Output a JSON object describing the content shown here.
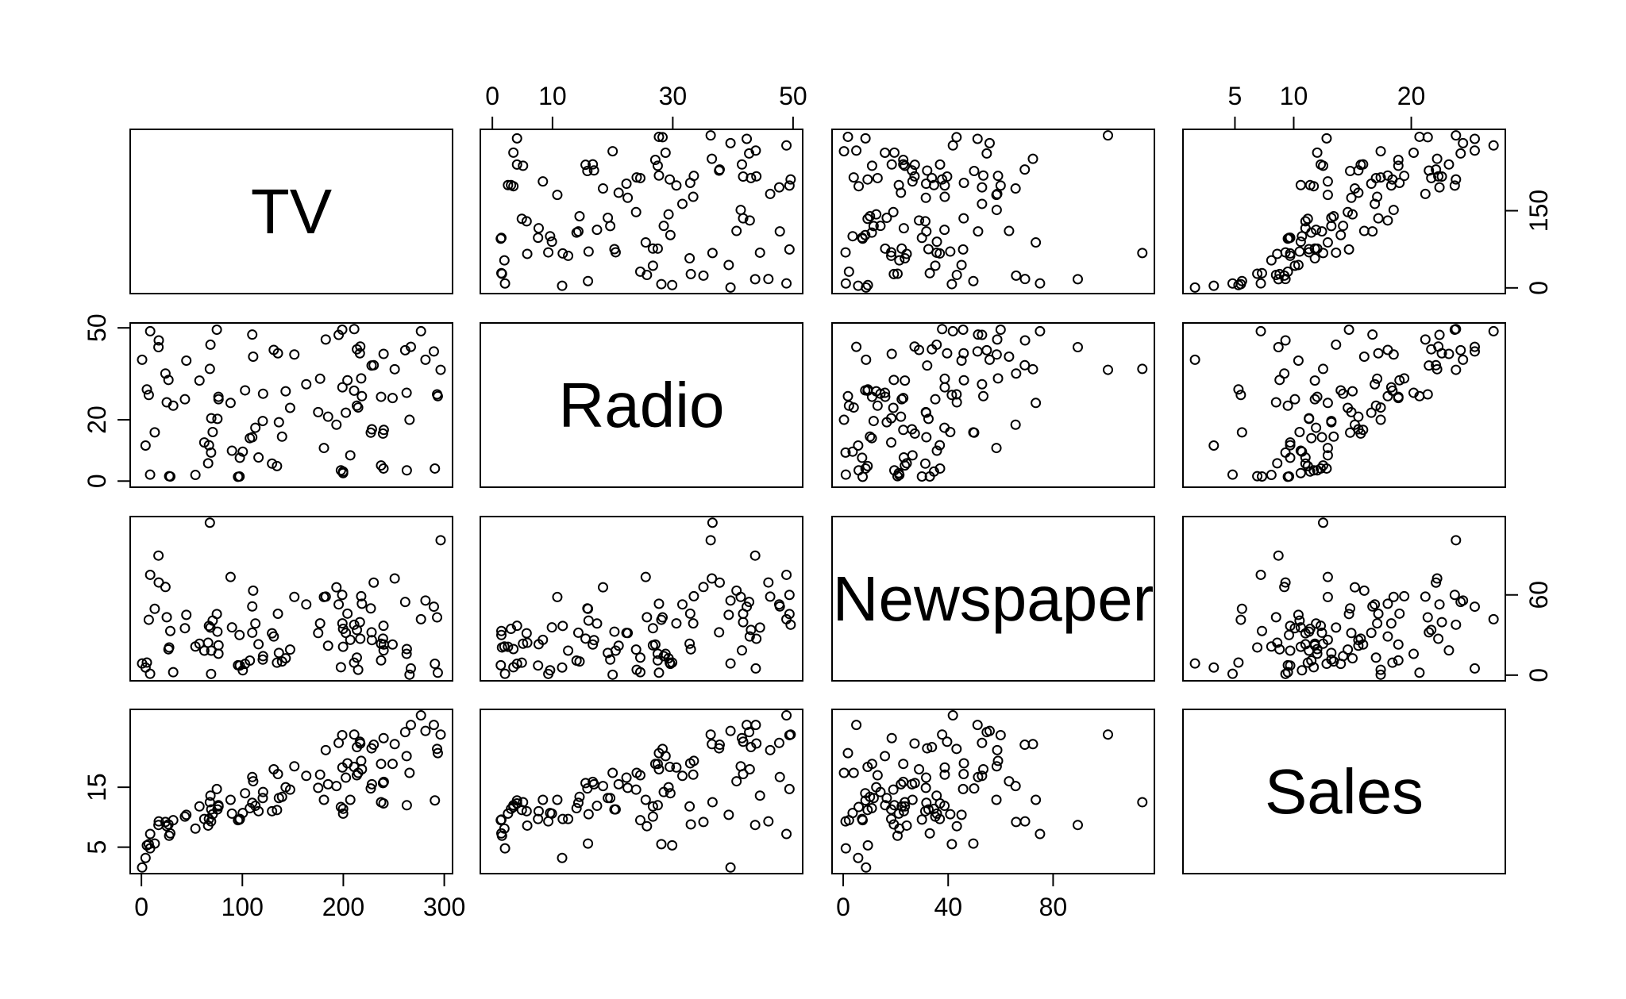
{
  "chart_data": {
    "type": "scatter_matrix",
    "variables": [
      "TV",
      "Radio",
      "Newspaper",
      "Sales"
    ],
    "lims": [
      [
        -11.1,
        308.2
      ],
      [
        -2,
        51.6
      ],
      [
        -4.25,
        118.6
      ],
      [
        0.58,
        28.0
      ]
    ],
    "axes": [
      {
        "side": "top",
        "var": 1,
        "ticks": [
          0,
          10,
          30,
          50
        ]
      },
      {
        "side": "top",
        "var": 3,
        "ticks": [
          5,
          10,
          20
        ]
      },
      {
        "side": "bottom",
        "var": 0,
        "ticks": [
          0,
          100,
          200,
          300
        ]
      },
      {
        "side": "bottom",
        "var": 2,
        "ticks": [
          0,
          40,
          80
        ]
      },
      {
        "side": "left",
        "var": 1,
        "ticks": [
          0,
          20,
          50
        ]
      },
      {
        "side": "left",
        "var": 3,
        "ticks": [
          5,
          15
        ]
      },
      {
        "side": "right",
        "var": 0,
        "ticks": [
          0,
          150
        ]
      },
      {
        "side": "right",
        "var": 2,
        "ticks": [
          0,
          60
        ]
      }
    ],
    "color": "#000000",
    "columns": [
      [
        230.1,
        44.5,
        17.2,
        151.5,
        180.8,
        8.7,
        57.5,
        120.2,
        8.6,
        199.8,
        66.1,
        214.7,
        23.8,
        97.5,
        204.1,
        195.4,
        67.8,
        281.4,
        69.2,
        147.3,
        218.4,
        237.4,
        13.2,
        228.3,
        62.3,
        262.9,
        142.9,
        240.1,
        248.8,
        70.6,
        292.9,
        112.9,
        97.2,
        265.6,
        95.7,
        290.7,
        266.9,
        74.7,
        43.1,
        228,
        202.5,
        177,
        293.6,
        206.9,
        25.1,
        175.1,
        89.7,
        239.9,
        227.2,
        66.9,
        199.8,
        100.4,
        216.4,
        182.6,
        262.7,
        198.9,
        7.3,
        136.2,
        210.8,
        210.7,
        53.5,
        261.3,
        239.3,
        102.7,
        131.1,
        69,
        31.5,
        139.3,
        237.4,
        216.8,
        199.1,
        109.8,
        26.8,
        129.4,
        213.4,
        16.9,
        27.5,
        120.5,
        5.4,
        116,
        76.4,
        239.8,
        75.3,
        68.4,
        213.5,
        193.2,
        76.3,
        110.7,
        88.3,
        109.8,
        134.3,
        28.6,
        217.7,
        250.9,
        107.4,
        163.3,
        197.6,
        184.9,
        289.7,
        135.2,
        0.7,
        296.4,
        4.1,
        276.9
      ],
      [
        37.8,
        39.3,
        45.9,
        41.3,
        10.8,
        48.9,
        32.8,
        19.6,
        2.1,
        2.6,
        5.8,
        24,
        35.1,
        7.6,
        32.9,
        47.7,
        36.6,
        39.6,
        20.5,
        23.9,
        27.7,
        5.1,
        15.9,
        16.9,
        12.6,
        3.5,
        29.3,
        16.7,
        27.1,
        16,
        28.3,
        17.4,
        1.5,
        20,
        1.4,
        4.1,
        43.8,
        49.4,
        26.7,
        37.7,
        22.3,
        33.4,
        27.7,
        8.4,
        25.7,
        22.5,
        9.9,
        41.5,
        15.8,
        11.7,
        3.1,
        9.6,
        41.7,
        46.2,
        28.8,
        49.4,
        28.1,
        19.2,
        49.6,
        29.5,
        2,
        42.7,
        15.5,
        29.6,
        42.8,
        9.3,
        24.6,
        14.5,
        27.5,
        43.9,
        30.6,
        14.3,
        33,
        5.7,
        24.6,
        43.7,
        1.6,
        28.5,
        29.9,
        7.7,
        26.7,
        4.1,
        20.3,
        44.5,
        43,
        18.4,
        27.5,
        40.6,
        25.5,
        47.8,
        4.9,
        1.5,
        33.5,
        36.5,
        14,
        31.6,
        3.5,
        21,
        42.3,
        41.7,
        39.6,
        36.3,
        11.6,
        48.9
      ],
      [
        69.2,
        45.1,
        69.3,
        58.5,
        58.4,
        75,
        23.5,
        11.6,
        1,
        21.2,
        24.2,
        4,
        65.9,
        7.2,
        46,
        52.9,
        114,
        55.8,
        18.3,
        19.1,
        53.4,
        23.5,
        49.6,
        26.2,
        18.3,
        19.5,
        12.6,
        22.9,
        22.9,
        40.8,
        43.2,
        38.6,
        30,
        0.3,
        7.4,
        8.5,
        5,
        45.7,
        35.1,
        32,
        31.6,
        38.7,
        1.8,
        26.4,
        43.3,
        31.5,
        35.7,
        18.5,
        49.9,
        36.8,
        34.6,
        3.6,
        39.6,
        58.7,
        15.9,
        60,
        41.4,
        16.6,
        37.7,
        9.3,
        21.4,
        54.7,
        27.3,
        8.4,
        28.9,
        0.9,
        2.2,
        10.2,
        11,
        27.2,
        38.7,
        31.7,
        19.3,
        31.3,
        13.1,
        89.4,
        20.7,
        14.2,
        9.4,
        23.1,
        22.3,
        36.9,
        32.5,
        35.6,
        33.8,
        65.7,
        16,
        63.2,
        73.4,
        51.4,
        9.3,
        33,
        59,
        72.3,
        10.9,
        52.9,
        5.9,
        22,
        51.2,
        45.9,
        8.7,
        100.9,
        5.7,
        41.8
      ],
      [
        22.1,
        10.4,
        9.3,
        18.5,
        12.9,
        7.2,
        11.8,
        13.2,
        4.8,
        10.6,
        8.6,
        17.4,
        9.2,
        9.7,
        19,
        22.4,
        12.5,
        24.4,
        11.3,
        14.6,
        18,
        12.5,
        5.6,
        15.5,
        9.7,
        12,
        15,
        15.9,
        18.9,
        10.5,
        21.4,
        11.9,
        9.6,
        17.4,
        9.5,
        12.8,
        25.4,
        14.7,
        10.1,
        21.5,
        16.6,
        17.1,
        20.7,
        12.9,
        8.5,
        14.9,
        10.6,
        23.2,
        14.8,
        9.7,
        11.4,
        10.7,
        22.6,
        21.2,
        20.2,
        23.7,
        5.5,
        13.2,
        23.8,
        18.4,
        8.1,
        24.2,
        15.7,
        14,
        18,
        9.3,
        9.5,
        13.4,
        18.9,
        22.3,
        18.3,
        12.4,
        8.8,
        11,
        17,
        8.7,
        6.9,
        14.2,
        5.3,
        11,
        11.8,
        12.3,
        11.3,
        13.6,
        21.7,
        15.2,
        12,
        16,
        12.9,
        16.7,
        11.2,
        7.3,
        19.4,
        22.2,
        11.5,
        16.9,
        11.7,
        15.5,
        25.4,
        17.2,
        1.6,
        23.8,
        3.2,
        27
      ]
    ]
  }
}
